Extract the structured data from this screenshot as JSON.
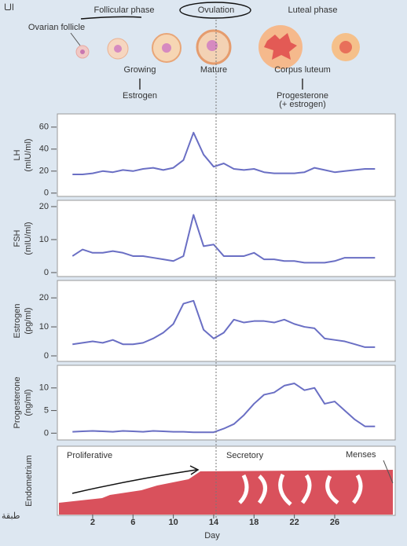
{
  "figure": {
    "follicular_phase": "Follicular phase",
    "ovulation": "Ovulation",
    "luteal_phase": "Luteal phase",
    "ovarian_follicle": "Ovarian follicle",
    "growing": "Growing",
    "estrogen": "Estrogen",
    "mature": "Mature",
    "corpus_luteum": "Corpus luteum",
    "progesterone": "Progesterone",
    "plus_estrogen": "(+ estrogen)",
    "endometrium": "Endometrium",
    "proliferative": "Proliferative",
    "secretory": "Secretory",
    "menses": "Menses",
    "note_top": "الـا",
    "note_side": "طبقة"
  },
  "chart_data": [
    {
      "type": "line",
      "ylabel": "LH",
      "yunit": "(mIU/ml)",
      "x": [
        0,
        1,
        2,
        3,
        4,
        5,
        6,
        7,
        8,
        9,
        10,
        11,
        12,
        13,
        14,
        15,
        16,
        17,
        18,
        19,
        20,
        21,
        22,
        23,
        24,
        25,
        26,
        27,
        28,
        29,
        30
      ],
      "series": [
        {
          "name": "LH",
          "color": "#6a6fc4",
          "values": [
            17,
            17,
            18,
            20,
            19,
            21,
            20,
            22,
            23,
            21,
            23,
            30,
            55,
            35,
            24,
            27,
            22,
            21,
            22,
            19,
            18,
            18,
            18,
            19,
            23,
            21,
            19,
            20,
            21,
            22,
            22
          ]
        }
      ],
      "xlim": [
        -1.5,
        32
      ],
      "ylim": [
        -3,
        72
      ],
      "yticks": [
        0,
        20,
        40,
        60
      ]
    },
    {
      "type": "line",
      "ylabel": "FSH",
      "yunit": "(mIU/ml)",
      "x": [
        0,
        1,
        2,
        3,
        4,
        5,
        6,
        7,
        8,
        9,
        10,
        11,
        12,
        13,
        14,
        15,
        16,
        17,
        18,
        19,
        20,
        21,
        22,
        23,
        24,
        25,
        26,
        27,
        28,
        29,
        30
      ],
      "series": [
        {
          "name": "FSH",
          "color": "#6a6fc4",
          "values": [
            5,
            7,
            6,
            6,
            6.5,
            6,
            5,
            5,
            4.5,
            4,
            3.5,
            5,
            17.5,
            8,
            8.5,
            5,
            5,
            5,
            6,
            4,
            4,
            3.5,
            3.5,
            3,
            3,
            3,
            3.5,
            4.5,
            4.5,
            4.5,
            4.5
          ]
        }
      ],
      "xlim": [
        -1.5,
        32
      ],
      "ylim": [
        -1.2,
        21.9
      ],
      "yticks": [
        0,
        10,
        20
      ]
    },
    {
      "type": "line",
      "ylabel": "Estrogen",
      "yunit": "(pg/ml)",
      "x": [
        0,
        1,
        2,
        3,
        4,
        5,
        6,
        7,
        8,
        9,
        10,
        11,
        12,
        13,
        14,
        15,
        16,
        17,
        18,
        19,
        20,
        21,
        22,
        23,
        24,
        25,
        26,
        27,
        28,
        29,
        30
      ],
      "series": [
        {
          "name": "Estrogen",
          "color": "#6a6fc4",
          "values": [
            4,
            4.5,
            5,
            4.5,
            5.5,
            4,
            4,
            4.5,
            6,
            8,
            11,
            18,
            19,
            9,
            6,
            8,
            12.5,
            11.5,
            12,
            12,
            11.5,
            12.5,
            11,
            10,
            9.5,
            6,
            5.5,
            5,
            4,
            3,
            3
          ]
        }
      ],
      "xlim": [
        -1.5,
        32
      ],
      "ylim": [
        -1.9,
        26
      ],
      "yticks": [
        0,
        10,
        20
      ]
    },
    {
      "type": "line",
      "ylabel": "Progesterone",
      "yunit": "(ng/ml)",
      "xlabel": "Day",
      "x": [
        0,
        1,
        2,
        3,
        4,
        5,
        6,
        7,
        8,
        9,
        10,
        11,
        12,
        13,
        14,
        15,
        16,
        17,
        18,
        19,
        20,
        21,
        22,
        23,
        24,
        25,
        26,
        27,
        28,
        29,
        30
      ],
      "series": [
        {
          "name": "Progesterone",
          "color": "#6a6fc4",
          "values": [
            0.3,
            0.4,
            0.5,
            0.4,
            0.3,
            0.5,
            0.4,
            0.3,
            0.5,
            0.4,
            0.3,
            0.3,
            0.2,
            0.2,
            0.2,
            1,
            2,
            4,
            6.5,
            8.5,
            9,
            10.5,
            11,
            9.5,
            10,
            6.5,
            7,
            5,
            3,
            1.5,
            1.5
          ]
        }
      ],
      "xlim": [
        -1.5,
        32
      ],
      "ylim": [
        -1.5,
        15
      ],
      "yticks": [
        0,
        5,
        10
      ],
      "xticks": [
        2,
        6,
        10,
        14,
        18,
        22,
        26
      ]
    }
  ]
}
